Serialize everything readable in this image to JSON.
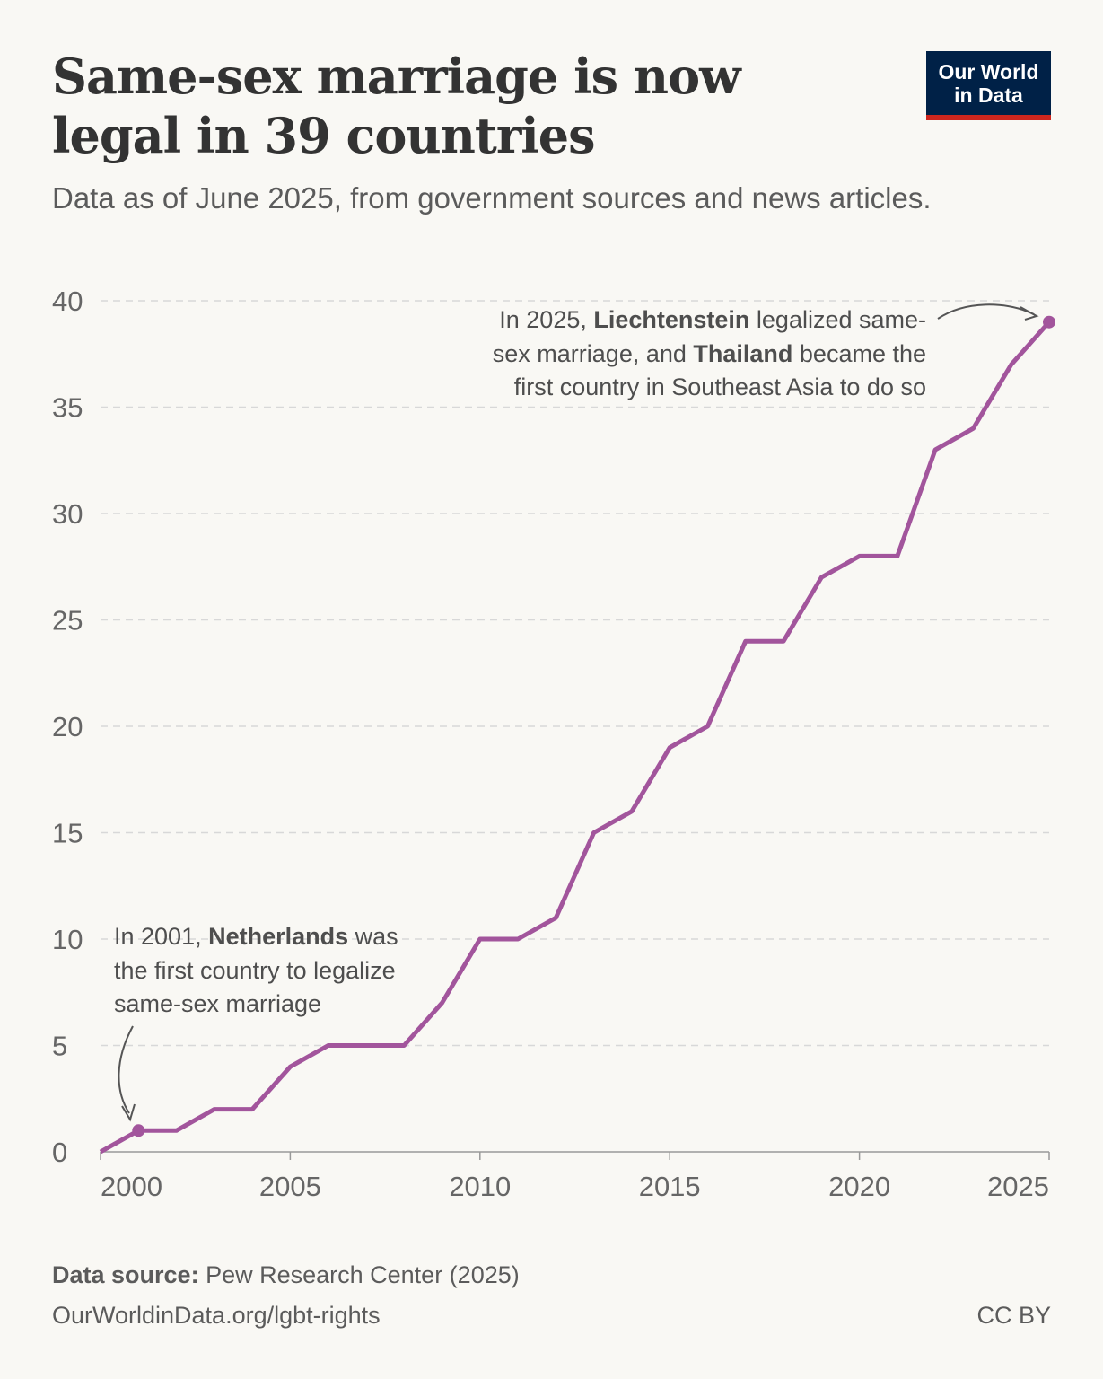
{
  "header": {
    "title": "Same-sex marriage is now legal in 39 countries",
    "subtitle": "Data as of June 2025, from government sources and news articles."
  },
  "logo": {
    "line1": "Our World",
    "line2": "in Data",
    "bg": "#002147",
    "accent": "#ce261e"
  },
  "chart_data": {
    "type": "line",
    "title": "Same-sex marriage is now legal in 39 countries",
    "x": [
      2000,
      2001,
      2002,
      2003,
      2004,
      2005,
      2006,
      2007,
      2008,
      2009,
      2010,
      2011,
      2012,
      2013,
      2014,
      2015,
      2016,
      2017,
      2018,
      2019,
      2020,
      2021,
      2022,
      2023,
      2024,
      2025
    ],
    "series": [
      {
        "values": [
          0,
          1,
          1,
          2,
          2,
          4,
          5,
          5,
          5,
          7,
          10,
          10,
          11,
          15,
          16,
          19,
          20,
          24,
          24,
          27,
          28,
          28,
          33,
          34,
          37,
          39
        ],
        "color": "#a2559c"
      }
    ],
    "xlim": [
      2000,
      2025
    ],
    "ylim": [
      0,
      40
    ],
    "xticks": [
      "2000",
      "2005",
      "2010",
      "2015",
      "2020",
      "2025"
    ],
    "yticks": [
      "0",
      "5",
      "10",
      "15",
      "20",
      "25",
      "30",
      "35",
      "40"
    ],
    "grid": "horizontal dashed",
    "annotations": [
      {
        "lines": [
          [
            {
              "t": "In 2001, "
            },
            {
              "t": "Netherlands",
              "b": true
            },
            {
              "t": " was"
            }
          ],
          [
            {
              "t": "the first country to legalize"
            }
          ],
          [
            {
              "t": "same-sex marriage"
            }
          ]
        ]
      },
      {
        "lines": [
          [
            {
              "t": "In 2025, "
            },
            {
              "t": "Liechtenstein",
              "b": true
            },
            {
              "t": " legalized same-"
            }
          ],
          [
            {
              "t": "sex marriage, and "
            },
            {
              "t": "Thailand",
              "b": true
            },
            {
              "t": " became the"
            }
          ],
          [
            {
              "t": "first country in Southeast Asia to do so"
            }
          ]
        ]
      }
    ]
  },
  "footer": {
    "source_label": "Data source:",
    "source": " Pew Research Center (2025)",
    "url": "OurWorldinData.org/lgbt-rights",
    "license": "CC BY"
  }
}
